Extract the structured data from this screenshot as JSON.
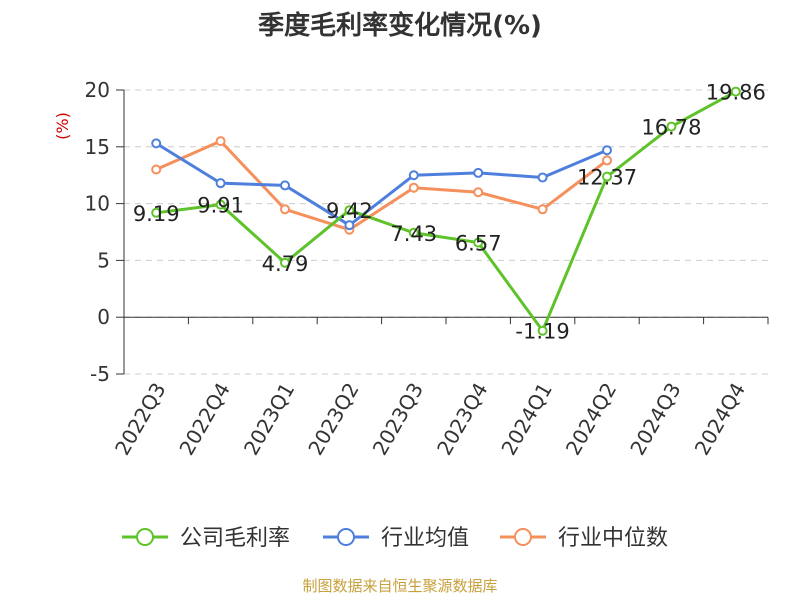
{
  "chart_data": {
    "type": "line",
    "title": "季度毛利率变化情况(%)",
    "ylabel": "(%)",
    "ylim": [
      -5,
      20
    ],
    "yticks": [
      -5,
      0,
      5,
      10,
      15,
      20
    ],
    "grid": true,
    "legend_position": "bottom",
    "categories": [
      "2022Q3",
      "2022Q4",
      "2023Q1",
      "2023Q2",
      "2023Q3",
      "2023Q4",
      "2024Q1",
      "2024Q2",
      "2024Q3",
      "2024Q4"
    ],
    "series": [
      {
        "name": "公司毛利率",
        "color": "#5ec32a",
        "values": [
          9.19,
          9.91,
          4.79,
          9.42,
          7.43,
          6.57,
          -1.19,
          12.37,
          16.78,
          19.86
        ],
        "labels": [
          "9.19",
          "9.91",
          "4.79",
          "9.42",
          "7.43",
          "6.57",
          "-1.19",
          "12.37",
          "16.78",
          "19.86"
        ]
      },
      {
        "name": "行业均值",
        "color": "#4e7fdc",
        "values": [
          15.3,
          11.8,
          11.6,
          8.1,
          12.5,
          12.7,
          12.3,
          14.7,
          null,
          null
        ]
      },
      {
        "name": "行业中位数",
        "color": "#f58f5b",
        "values": [
          13.0,
          15.5,
          9.5,
          7.7,
          11.4,
          11.0,
          9.5,
          13.8,
          null,
          null
        ]
      }
    ]
  },
  "colors": {
    "ylabel": "#cc0000",
    "source": "#c8a03c",
    "grid": "#cccccc",
    "axis": "#333333"
  },
  "source_text": "制图数据来自恒生聚源数据库"
}
